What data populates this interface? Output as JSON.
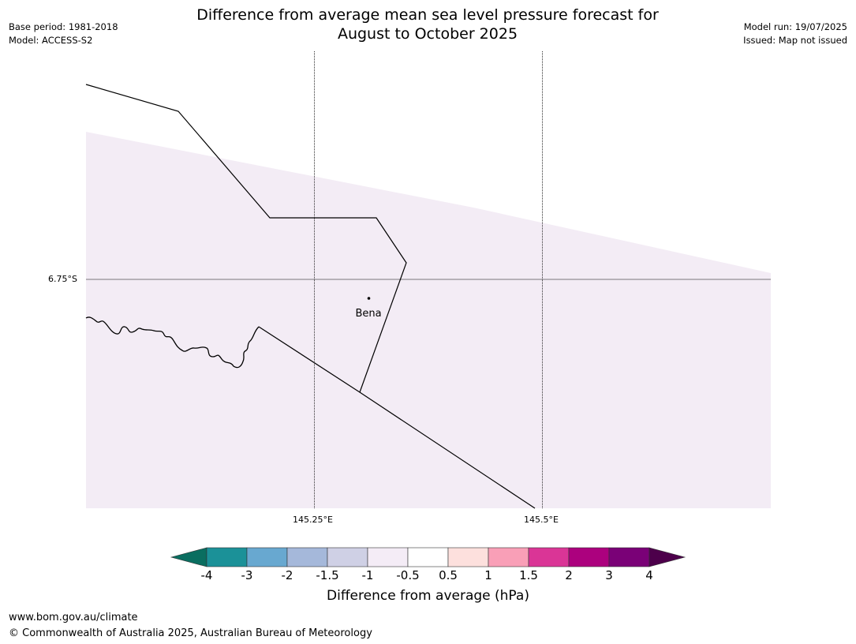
{
  "header": {
    "title_line1": "Difference from average mean sea level pressure forecast for",
    "title_line2": "August to October 2025",
    "base_period": "Base period: 1981-2018",
    "model": "Model: ACCESS-S2",
    "model_run": "Model run: 19/07/2025",
    "issued": "Issued: Map not issued"
  },
  "map": {
    "lat_label": "6.75°S",
    "lon_labels": [
      "145.25°E",
      "145.5°E"
    ],
    "place_label": "Bena",
    "colors": {
      "fill_region": "#f3ecf5",
      "gridline": "#000000",
      "boundary": "#000000"
    }
  },
  "colorbar": {
    "label": "Difference from average (hPa)",
    "ticks": [
      "-4",
      "-3",
      "-2",
      "-1.5",
      "-1",
      "-0.5",
      "0.5",
      "1",
      "1.5",
      "2",
      "3",
      "4"
    ],
    "colors": [
      "#0a6e60",
      "#1b9198",
      "#68a8d0",
      "#a5b8da",
      "#cfd0e5",
      "#f4ecf6",
      "#ffffff",
      "#fde0dd",
      "#f99fb7",
      "#da3596",
      "#ac017e",
      "#7a0177",
      "#4d004b"
    ]
  },
  "footer": {
    "url": "www.bom.gov.au/climate",
    "copyright": "© Commonwealth of Australia 2025, Australian Bureau of Meteorology"
  }
}
